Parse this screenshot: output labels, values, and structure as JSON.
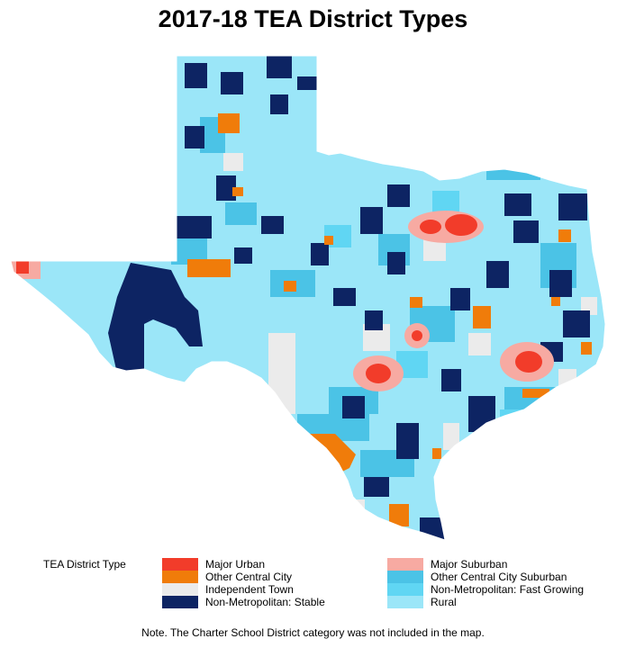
{
  "title": "2017-18 TEA District Types",
  "legend": {
    "title": "TEA District Type",
    "items": [
      {
        "label": "Major Urban",
        "color": "#f23c2a"
      },
      {
        "label": "Other Central City",
        "color": "#f07c0a"
      },
      {
        "label": "Independent Town",
        "color": "#ebebeb"
      },
      {
        "label": "Non-Metropolitan: Stable",
        "color": "#0d2463"
      },
      {
        "label": "Major Suburban",
        "color": "#f7aaa2"
      },
      {
        "label": "Other Central City Suburban",
        "color": "#4bc3e6"
      },
      {
        "label": "Non-Metropolitan: Fast Growing",
        "color": "#60d6f3"
      },
      {
        "label": "Rural",
        "color": "#9be6f8"
      }
    ]
  },
  "note": "Note. The Charter School District category was not included in the map."
}
